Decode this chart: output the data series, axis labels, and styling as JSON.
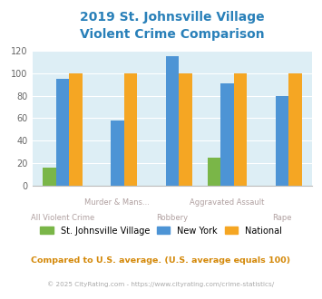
{
  "title": "2019 St. Johnsville Village\nViolent Crime Comparison",
  "categories": [
    "All Violent Crime",
    "Murder & Mans...",
    "Robbery",
    "Aggravated Assault",
    "Rape"
  ],
  "category_labels_line1": [
    "",
    "Murder & Mans...",
    "",
    "Aggravated Assault",
    ""
  ],
  "category_labels_line2": [
    "All Violent Crime",
    "",
    "Robbery",
    "",
    "Rape"
  ],
  "village_values": [
    16,
    0,
    0,
    25,
    0
  ],
  "ny_values": [
    95,
    58,
    115,
    91,
    80
  ],
  "national_values": [
    100,
    100,
    100,
    100,
    100
  ],
  "village_color": "#7ab648",
  "ny_color": "#4d94d5",
  "national_color": "#f5a623",
  "background_color": "#ddeef5",
  "ylim": [
    0,
    120
  ],
  "yticks": [
    0,
    20,
    40,
    60,
    80,
    100,
    120
  ],
  "legend_labels": [
    "St. Johnsville Village",
    "New York",
    "National"
  ],
  "footnote1": "Compared to U.S. average. (U.S. average equals 100)",
  "footnote2": "© 2025 CityRating.com - https://www.cityrating.com/crime-statistics/",
  "title_color": "#2980b9",
  "footnote1_color": "#d4890a",
  "footnote2_color": "#aaaaaa",
  "url_color": "#4d94d5",
  "xlabel_color": "#b0a0a0"
}
